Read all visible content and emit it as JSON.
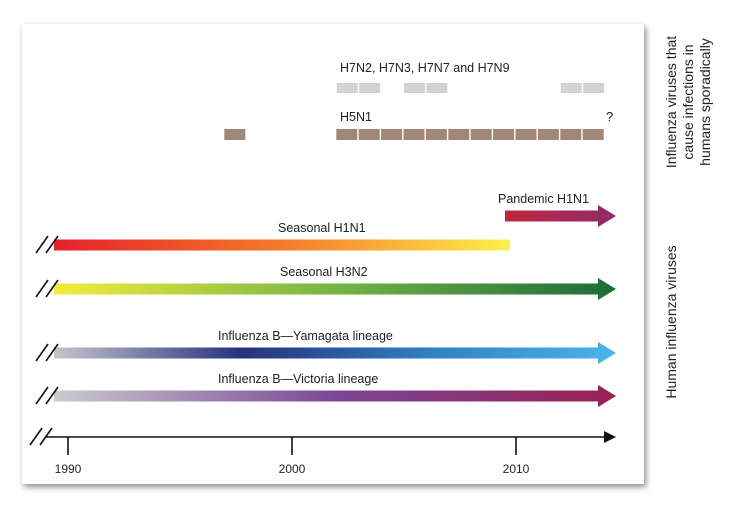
{
  "sporadic": {
    "h7_label": "H7N2, H7N3, H7N7 and H7N9",
    "h7_color": "#d1d3d4",
    "h7_years": [
      2002,
      2003,
      2005,
      2006,
      2012,
      2013
    ],
    "h5_label": "H5N1",
    "h5_color": "#a0877a",
    "h5_years": [
      1997,
      2002,
      2003,
      2004,
      2005,
      2006,
      2007,
      2008,
      2009,
      2010,
      2011,
      2012,
      2013
    ],
    "question": "?"
  },
  "lineages": [
    {
      "label": "Pandemic H1N1",
      "start": 2009,
      "end": 2014,
      "arrow": true,
      "break": false,
      "colors": [
        "#c0283f",
        "#8e2a6a"
      ]
    },
    {
      "label": "Seasonal H1N1",
      "start": 1990,
      "end": 2009,
      "arrow": false,
      "break": true,
      "colors": [
        "#e5202b",
        "#f47a2a",
        "#fdf04c"
      ]
    },
    {
      "label": "Seasonal H3N2",
      "start": 1990,
      "end": 2014,
      "arrow": true,
      "break": true,
      "colors": [
        "#f3ec3c",
        "#74b545",
        "#1b6a3a"
      ]
    },
    {
      "label": "Influenza B—Yamagata lineage",
      "start": 1990,
      "end": 2014,
      "arrow": true,
      "break": true,
      "colors": [
        "#c4c4cc",
        "#27317f",
        "#2f80c0",
        "#4cb5ea"
      ]
    },
    {
      "label": "Influenza B—Victoria lineage",
      "start": 1990,
      "end": 2014,
      "arrow": true,
      "break": true,
      "colors": [
        "#cacace",
        "#7a4796",
        "#9a2154"
      ]
    }
  ],
  "axis": {
    "ticks": [
      {
        "year": 1990,
        "label": "1990"
      },
      {
        "year": 2000,
        "label": "2000"
      },
      {
        "year": 2010,
        "label": "2010"
      }
    ]
  },
  "side_labels": {
    "sporadic": [
      "Influenza viruses that",
      "cause infections in",
      "humans sporadically"
    ],
    "human": "Human influenza viruses"
  }
}
